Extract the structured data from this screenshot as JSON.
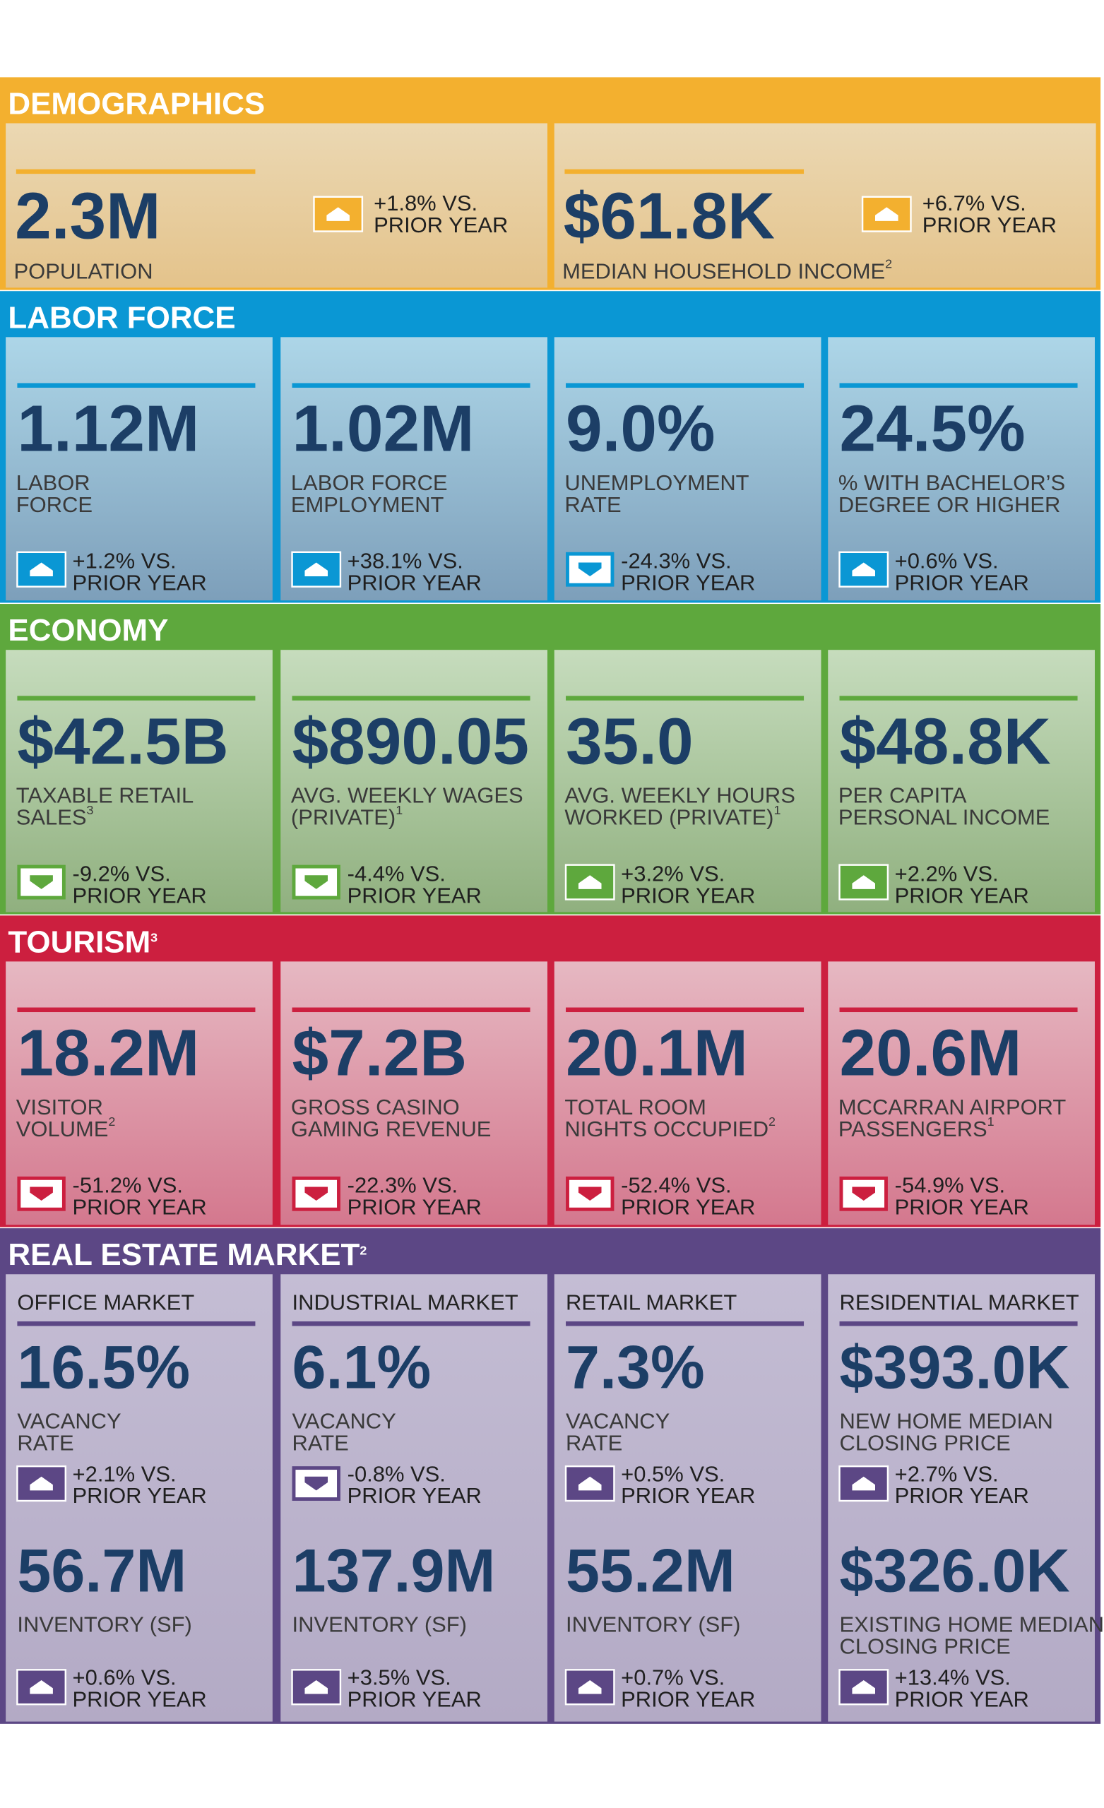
{
  "sections": [
    {
      "title": "DEMOGRAPHICS",
      "color": "#f3b02f",
      "card_top": "#ebd8b3",
      "card_bottom": "#e4c38b",
      "cards": [
        {
          "value": "2.3M",
          "label": [
            "POPULATION"
          ],
          "change": "+1.8% VS.",
          "note": "PRIOR YEAR",
          "direction": "up"
        },
        {
          "value": "$61.8K",
          "label": [
            "MEDIAN HOUSEHOLD INCOME"
          ],
          "footnote": "2",
          "change": "+6.7% VS.",
          "note": "PRIOR YEAR",
          "direction": "up"
        }
      ]
    },
    {
      "title": "LABOR FORCE",
      "color": "#0a97d4",
      "card_top": "#add6e8",
      "card_bottom": "#7d9fba",
      "cards": [
        {
          "value": "1.12M",
          "label": [
            "LABOR",
            "FORCE"
          ],
          "change": "+1.2% VS.",
          "note": "PRIOR YEAR",
          "direction": "up"
        },
        {
          "value": "1.02M",
          "label": [
            "LABOR FORCE",
            "EMPLOYMENT"
          ],
          "change": "+38.1% VS.",
          "note": "PRIOR YEAR",
          "direction": "up"
        },
        {
          "value": "9.0%",
          "label": [
            "UNEMPLOYMENT",
            "RATE"
          ],
          "change": "-24.3% VS.",
          "note": "PRIOR YEAR",
          "direction": "down"
        },
        {
          "value": "24.5%",
          "label": [
            "% WITH BACHELOR’S",
            "DEGREE OR HIGHER"
          ],
          "change": "+0.6% VS.",
          "note": "PRIOR YEAR",
          "direction": "up"
        }
      ]
    },
    {
      "title": "ECONOMY",
      "color": "#5ea83d",
      "card_top": "#c6dcbd",
      "card_bottom": "#90b07f",
      "cards": [
        {
          "value": "$42.5B",
          "label": [
            "TAXABLE RETAIL",
            "SALES"
          ],
          "footnote": "3",
          "change": "-9.2% VS.",
          "note": "PRIOR YEAR",
          "direction": "down"
        },
        {
          "value": "$890.05",
          "label": [
            "AVG. WEEKLY WAGES",
            "(PRIVATE)"
          ],
          "footnote": "1",
          "change": "-4.4% VS.",
          "note": "PRIOR YEAR",
          "direction": "down"
        },
        {
          "value": "35.0",
          "label": [
            "AVG. WEEKLY HOURS",
            "WORKED (PRIVATE)"
          ],
          "footnote": "1",
          "change": "+3.2% VS.",
          "note": "PRIOR YEAR",
          "direction": "up"
        },
        {
          "value": "$48.8K",
          "label": [
            "PER CAPITA",
            "PERSONAL INCOME"
          ],
          "change": "+2.2% VS.",
          "note": "PRIOR YEAR",
          "direction": "up"
        }
      ]
    },
    {
      "title": "TOURISM",
      "footnote": "3",
      "color": "#cc1f3f",
      "card_top": "#e6b8c2",
      "card_bottom": "#d4788e",
      "cards": [
        {
          "value": "18.2M",
          "label": [
            "VISITOR",
            "VOLUME"
          ],
          "footnote": "2",
          "change": "-51.2% VS.",
          "note": "PRIOR YEAR",
          "direction": "down"
        },
        {
          "value": "$7.2B",
          "label": [
            "GROSS CASINO",
            "GAMING REVENUE"
          ],
          "change": "-22.3% VS.",
          "note": "PRIOR YEAR",
          "direction": "down"
        },
        {
          "value": "20.1M",
          "label": [
            "TOTAL ROOM",
            "NIGHTS OCCUPIED"
          ],
          "footnote": "2",
          "change": "-52.4% VS.",
          "note": "PRIOR YEAR",
          "direction": "down"
        },
        {
          "value": "20.6M",
          "label": [
            "MCCARRAN AIRPORT",
            "PASSENGERS"
          ],
          "footnote": "1",
          "change": "-54.9% VS.",
          "note": "PRIOR YEAR",
          "direction": "down"
        }
      ]
    },
    {
      "title": "REAL ESTATE MARKET",
      "footnote": "2",
      "color": "#5c4785",
      "card_top": "#c4bdd4",
      "card_bottom": "#b3aac5",
      "cards": [
        {
          "heading": "OFFICE MARKET",
          "metrics": [
            {
              "value": "16.5%",
              "label": [
                "VACANCY",
                "RATE"
              ],
              "change": "+2.1% VS.",
              "note": "PRIOR YEAR",
              "direction": "up"
            },
            {
              "value": "56.7M",
              "label": [
                "INVENTORY (SF)"
              ],
              "change": "+0.6% VS.",
              "note": "PRIOR YEAR",
              "direction": "up"
            }
          ]
        },
        {
          "heading": "INDUSTRIAL MARKET",
          "metrics": [
            {
              "value": "6.1%",
              "label": [
                "VACANCY",
                "RATE"
              ],
              "change": "-0.8% VS.",
              "note": "PRIOR YEAR",
              "direction": "down"
            },
            {
              "value": "137.9M",
              "label": [
                "INVENTORY (SF)"
              ],
              "change": "+3.5% VS.",
              "note": "PRIOR YEAR",
              "direction": "up"
            }
          ]
        },
        {
          "heading": "RETAIL MARKET",
          "metrics": [
            {
              "value": "7.3%",
              "label": [
                "VACANCY",
                "RATE"
              ],
              "change": "+0.5% VS.",
              "note": "PRIOR YEAR",
              "direction": "up"
            },
            {
              "value": "55.2M",
              "label": [
                "INVENTORY (SF)"
              ],
              "change": "+0.7% VS.",
              "note": "PRIOR YEAR",
              "direction": "up"
            }
          ]
        },
        {
          "heading": "RESIDENTIAL MARKET",
          "metrics": [
            {
              "value": "$393.0K",
              "label": [
                "NEW HOME MEDIAN",
                "CLOSING PRICE"
              ],
              "change": "+2.7% VS.",
              "note": "PRIOR YEAR",
              "direction": "up"
            },
            {
              "value": "$326.0K",
              "label": [
                "EXISTING HOME MEDIAN",
                "CLOSING PRICE"
              ],
              "change": "+13.4% VS.",
              "note": "PRIOR YEAR",
              "direction": "up"
            }
          ]
        }
      ]
    }
  ]
}
